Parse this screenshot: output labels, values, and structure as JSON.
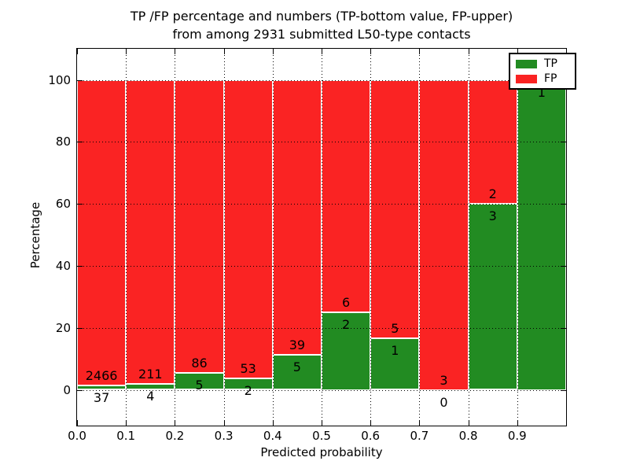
{
  "title": {
    "line1": "TP /FP percentage and numbers (TP-bottom value, FP-upper)",
    "line2": "from among 2931 submitted L50-type contacts"
  },
  "axes": {
    "xlabel": "Predicted probability",
    "ylabel": "Percentage",
    "x_tick_labels": [
      "0.0",
      "0.1",
      "0.2",
      "0.3",
      "0.4",
      "0.5",
      "0.6",
      "0.7",
      "0.8",
      "0.9"
    ],
    "y_tick_labels": [
      "0",
      "20",
      "40",
      "60",
      "80",
      "100"
    ]
  },
  "legend": {
    "position": "upper right",
    "entries": [
      {
        "label": "TP",
        "color": "#228b22"
      },
      {
        "label": "FP",
        "color": "#fa2323"
      }
    ]
  },
  "chart_data": {
    "type": "bar",
    "stacked": true,
    "title": "TP /FP percentage and numbers (TP-bottom value, FP-upper) from among 2931 submitted L50-type contacts",
    "xlabel": "Predicted probability",
    "ylabel": "Percentage",
    "xlim": [
      0.0,
      1.0
    ],
    "ylim_displayed": [
      -11.5,
      110.0
    ],
    "percent_range": [
      0,
      100
    ],
    "x_ticks": [
      0.0,
      0.1,
      0.2,
      0.3,
      0.4,
      0.5,
      0.6,
      0.7,
      0.8,
      0.9
    ],
    "y_ticks": [
      0,
      20,
      40,
      60,
      80,
      100
    ],
    "grid": true,
    "bin_width": 0.1,
    "legend_position": "upper right",
    "series": [
      {
        "name": "TP",
        "color": "#228b22",
        "counts": [
          37,
          4,
          5,
          2,
          5,
          2,
          1,
          0,
          3,
          1
        ]
      },
      {
        "name": "FP",
        "color": "#fa2323",
        "counts": [
          2466,
          211,
          86,
          53,
          39,
          6,
          5,
          3,
          2,
          0
        ]
      }
    ],
    "bins": [
      {
        "x_start": 0.0,
        "x_end": 0.1,
        "tp": 37,
        "fp": 2466,
        "tp_percent": 1.48
      },
      {
        "x_start": 0.1,
        "x_end": 0.2,
        "tp": 4,
        "fp": 211,
        "tp_percent": 1.86
      },
      {
        "x_start": 0.2,
        "x_end": 0.3,
        "tp": 5,
        "fp": 86,
        "tp_percent": 5.49
      },
      {
        "x_start": 0.3,
        "x_end": 0.4,
        "tp": 2,
        "fp": 53,
        "tp_percent": 3.64
      },
      {
        "x_start": 0.4,
        "x_end": 0.5,
        "tp": 5,
        "fp": 39,
        "tp_percent": 11.36
      },
      {
        "x_start": 0.5,
        "x_end": 0.6,
        "tp": 2,
        "fp": 6,
        "tp_percent": 25.0
      },
      {
        "x_start": 0.6,
        "x_end": 0.7,
        "tp": 1,
        "fp": 5,
        "tp_percent": 16.67
      },
      {
        "x_start": 0.7,
        "x_end": 0.8,
        "tp": 0,
        "fp": 3,
        "tp_percent": 0.0
      },
      {
        "x_start": 0.8,
        "x_end": 0.9,
        "tp": 3,
        "fp": 2,
        "tp_percent": 60.0
      },
      {
        "x_start": 0.9,
        "x_end": 1.0,
        "tp": 1,
        "fp": 0,
        "tp_percent": 100.0
      }
    ]
  }
}
